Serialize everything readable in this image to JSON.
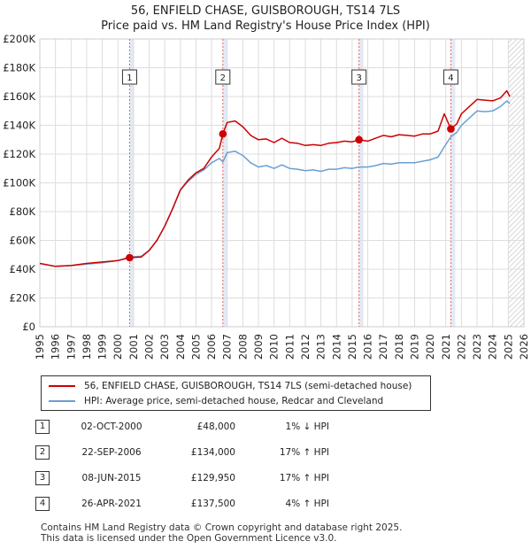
{
  "title": "56, ENFIELD CHASE, GUISBOROUGH, TS14 7LS",
  "subtitle": "Price paid vs. HM Land Registry's House Price Index (HPI)",
  "colors": {
    "property": "#cc0000",
    "hpi": "#6a9fd4",
    "grid": "#dddddd",
    "band": "#e0e8f5",
    "vline": "#dd6666"
  },
  "chart_data": {
    "type": "line",
    "title": "56, ENFIELD CHASE, GUISBOROUGH, TS14 7LS",
    "subtitle": "Price paid vs. HM Land Registry's House Price Index (HPI)",
    "xlim": [
      1995,
      2026
    ],
    "ylim": [
      0,
      200000
    ],
    "y_ticks": [
      0,
      20000,
      40000,
      60000,
      80000,
      100000,
      120000,
      140000,
      160000,
      180000,
      200000
    ],
    "y_tick_labels": [
      "£0",
      "£20K",
      "£40K",
      "£60K",
      "£80K",
      "£100K",
      "£120K",
      "£140K",
      "£160K",
      "£180K",
      "£200K"
    ],
    "x_ticks": [
      1995,
      1996,
      1997,
      1998,
      1999,
      2000,
      2001,
      2002,
      2003,
      2004,
      2005,
      2006,
      2007,
      2008,
      2009,
      2010,
      2011,
      2012,
      2013,
      2014,
      2015,
      2016,
      2017,
      2018,
      2019,
      2020,
      2021,
      2022,
      2023,
      2024,
      2025,
      2026
    ],
    "x_tick_labels": [
      "1995",
      "1996",
      "1997",
      "1998",
      "1999",
      "2000",
      "2001",
      "2002",
      "2003",
      "2004",
      "2005",
      "2006",
      "2007",
      "2008",
      "2009",
      "2010",
      "2011",
      "2012",
      "2013",
      "2014",
      "2015",
      "2016",
      "2017",
      "2018",
      "2019",
      "2020",
      "2021",
      "2022",
      "2023",
      "2024",
      "2025",
      "2026"
    ],
    "forecast_from": 2025.0,
    "series": [
      {
        "name": "56, ENFIELD CHASE, GUISBOROUGH, TS14 7LS (semi-detached house)",
        "color": "#cc0000",
        "x": [
          1995.0,
          1996.0,
          1997.0,
          1998.0,
          1999.0,
          2000.0,
          2000.75,
          2001.5,
          2002.0,
          2002.5,
          2003.0,
          2003.5,
          2004.0,
          2004.5,
          2005.0,
          2005.5,
          2006.0,
          2006.5,
          2006.72,
          2007.0,
          2007.5,
          2008.0,
          2008.5,
          2009.0,
          2009.5,
          2010.0,
          2010.5,
          2011.0,
          2011.5,
          2012.0,
          2012.5,
          2013.0,
          2013.5,
          2014.0,
          2014.5,
          2015.0,
          2015.44,
          2016.0,
          2016.5,
          2017.0,
          2017.5,
          2018.0,
          2018.5,
          2019.0,
          2019.5,
          2020.0,
          2020.5,
          2020.9,
          2021.32,
          2021.7,
          2022.0,
          2022.5,
          2023.0,
          2023.5,
          2024.0,
          2024.5,
          2024.9,
          2025.1
        ],
        "values": [
          44000,
          42000,
          42500,
          44000,
          45000,
          46000,
          48000,
          48500,
          53000,
          60000,
          70000,
          82000,
          95000,
          102000,
          107000,
          110000,
          118000,
          124000,
          134000,
          142000,
          143000,
          139000,
          133000,
          130000,
          130500,
          128000,
          131000,
          128000,
          127500,
          126000,
          126500,
          126000,
          127500,
          128000,
          129000,
          128500,
          129950,
          129000,
          131000,
          133000,
          132000,
          133500,
          133000,
          132500,
          134000,
          134000,
          136000,
          148000,
          137500,
          141000,
          148000,
          153000,
          158000,
          157500,
          157000,
          159000,
          164000,
          160000
        ]
      },
      {
        "name": "HPI: Average price, semi-detached house, Redcar and Cleveland",
        "color": "#6a9fd4",
        "x": [
          1995.0,
          1996.0,
          1997.0,
          1998.0,
          1999.0,
          2000.0,
          2000.75,
          2001.5,
          2002.0,
          2002.5,
          2003.0,
          2003.5,
          2004.0,
          2004.5,
          2005.0,
          2005.5,
          2006.0,
          2006.5,
          2006.72,
          2007.0,
          2007.5,
          2008.0,
          2008.5,
          2009.0,
          2009.5,
          2010.0,
          2010.5,
          2011.0,
          2011.5,
          2012.0,
          2012.5,
          2013.0,
          2013.5,
          2014.0,
          2014.5,
          2015.0,
          2015.44,
          2016.0,
          2016.5,
          2017.0,
          2017.5,
          2018.0,
          2018.5,
          2019.0,
          2019.5,
          2020.0,
          2020.5,
          2020.9,
          2021.32,
          2021.7,
          2022.0,
          2022.5,
          2023.0,
          2023.5,
          2024.0,
          2024.5,
          2024.9,
          2025.1
        ],
        "values": [
          44000,
          42000,
          42500,
          43500,
          44500,
          46000,
          48500,
          49000,
          53000,
          60000,
          70000,
          82000,
          95000,
          101000,
          106000,
          109000,
          114000,
          117000,
          114500,
          121000,
          122000,
          119000,
          114000,
          111000,
          112000,
          110000,
          112500,
          110000,
          109500,
          108500,
          109000,
          108000,
          109500,
          109500,
          110500,
          110000,
          111000,
          111000,
          112000,
          113500,
          113000,
          114000,
          114000,
          114000,
          115000,
          116000,
          118000,
          125000,
          132000,
          135000,
          140000,
          145000,
          150000,
          149500,
          150000,
          153000,
          157000,
          155000
        ]
      }
    ],
    "sales": [
      {
        "label": "1",
        "x": 2000.75,
        "value": 48000
      },
      {
        "label": "2",
        "x": 2006.72,
        "value": 134000
      },
      {
        "label": "3",
        "x": 2015.44,
        "value": 129950
      },
      {
        "label": "4",
        "x": 2021.32,
        "value": 137500
      }
    ]
  },
  "legend": {
    "property": "56, ENFIELD CHASE, GUISBOROUGH, TS14 7LS (semi-detached house)",
    "hpi": "HPI: Average price, semi-detached house, Redcar and Cleveland"
  },
  "sales_table": [
    {
      "num": "1",
      "date": "02-OCT-2000",
      "price": "£48,000",
      "hpi": "1% ↓ HPI"
    },
    {
      "num": "2",
      "date": "22-SEP-2006",
      "price": "£134,000",
      "hpi": "17% ↑ HPI"
    },
    {
      "num": "3",
      "date": "08-JUN-2015",
      "price": "£129,950",
      "hpi": "17% ↑ HPI"
    },
    {
      "num": "4",
      "date": "26-APR-2021",
      "price": "£137,500",
      "hpi": "4% ↑ HPI"
    }
  ],
  "footer": {
    "line1": "Contains HM Land Registry data © Crown copyright and database right 2025.",
    "line2": "This data is licensed under the Open Government Licence v3.0."
  }
}
